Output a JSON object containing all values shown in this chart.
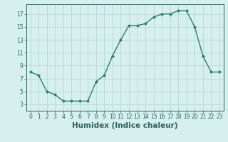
{
  "x": [
    0,
    1,
    2,
    3,
    4,
    5,
    6,
    7,
    8,
    9,
    10,
    11,
    12,
    13,
    14,
    15,
    16,
    17,
    18,
    19,
    20,
    21,
    22,
    23
  ],
  "y": [
    8,
    7.5,
    5,
    4.5,
    3.5,
    3.5,
    3.5,
    3.5,
    6.5,
    7.5,
    10.5,
    13,
    15.2,
    15.2,
    15.5,
    16.5,
    17,
    17,
    17.5,
    17.5,
    15,
    10.5,
    8,
    8
  ],
  "line_color": "#2e7d6e",
  "marker": "D",
  "marker_size": 2,
  "bg_color": "#d6f0ef",
  "grid_color": "#b8d8d4",
  "xlabel": "Humidex (Indice chaleur)",
  "xlim": [
    -0.5,
    23.5
  ],
  "ylim": [
    2,
    18.5
  ],
  "yticks": [
    3,
    5,
    7,
    9,
    11,
    13,
    15,
    17
  ],
  "xticks": [
    0,
    1,
    2,
    3,
    4,
    5,
    6,
    7,
    8,
    9,
    10,
    11,
    12,
    13,
    14,
    15,
    16,
    17,
    18,
    19,
    20,
    21,
    22,
    23
  ],
  "font_color": "#2e6060",
  "tick_fontsize": 5.5,
  "label_fontsize": 7.5
}
